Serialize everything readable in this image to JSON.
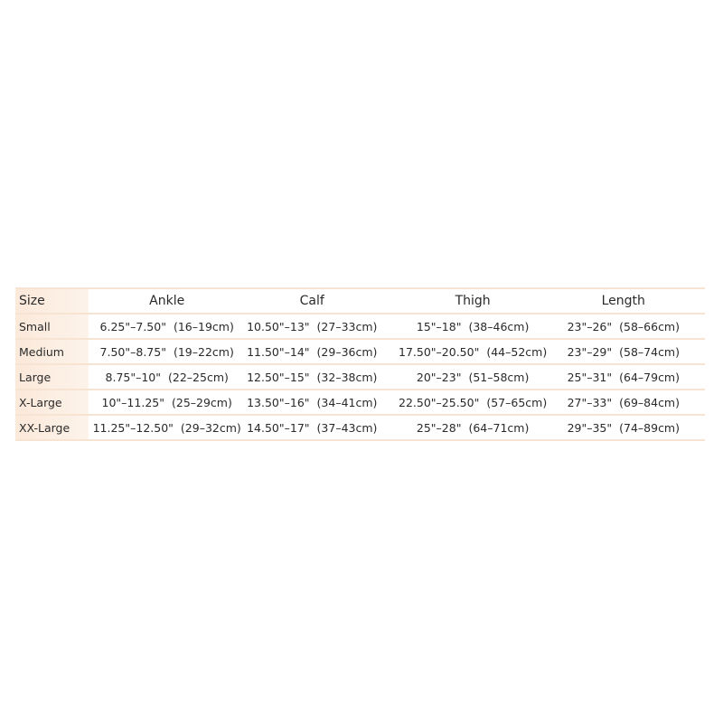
{
  "headers": [
    "Size",
    "Ankle",
    "Calf",
    "Thigh",
    "Length"
  ],
  "rows": [
    {
      "size": "Small",
      "ankle": [
        "6.25\"–7.50\"",
        "(16–19cm)"
      ],
      "calf": [
        "10.50\"–13\"",
        "(27–33cm)"
      ],
      "thigh": [
        "15\"–18\"",
        "(38–46cm)"
      ],
      "length": [
        "23\"–26\"",
        "(58–66cm)"
      ]
    },
    {
      "size": "Medium",
      "ankle": [
        "7.50\"–8.75\"",
        "(19–22cm)"
      ],
      "calf": [
        "11.50\"–14\"",
        "(29–36cm)"
      ],
      "thigh": [
        "17.50\"–20.50\"",
        "(44–52cm)"
      ],
      "length": [
        "23\"–29\"",
        "(58–74cm)"
      ]
    },
    {
      "size": "Large",
      "ankle": [
        "8.75\"–10\"",
        "(22–25cm)"
      ],
      "calf": [
        "12.50\"–15\"",
        "(32–38cm)"
      ],
      "thigh": [
        "20\"–23\"",
        "(51–58cm)"
      ],
      "length": [
        "25\"–31\"",
        "(64–79cm)"
      ]
    },
    {
      "size": "X-Large",
      "ankle": [
        "10\"–11.25\"",
        "(25–29cm)"
      ],
      "calf": [
        "13.50\"–16\"",
        "(34–41cm)"
      ],
      "thigh": [
        "22.50\"–25.50\"",
        "(57–65cm)"
      ],
      "length": [
        "27\"–33\"",
        "(69–84cm)"
      ]
    },
    {
      "size": "XX-Large",
      "ankle": [
        "11.25\"–12.50\"",
        "(29–32cm)"
      ],
      "calf": [
        "14.50\"–17\"",
        "(37–43cm)"
      ],
      "thigh": [
        "25\"–28\"",
        "(64–71cm)"
      ],
      "length": [
        "29\"–35\"",
        "(74–89cm)"
      ]
    }
  ]
}
